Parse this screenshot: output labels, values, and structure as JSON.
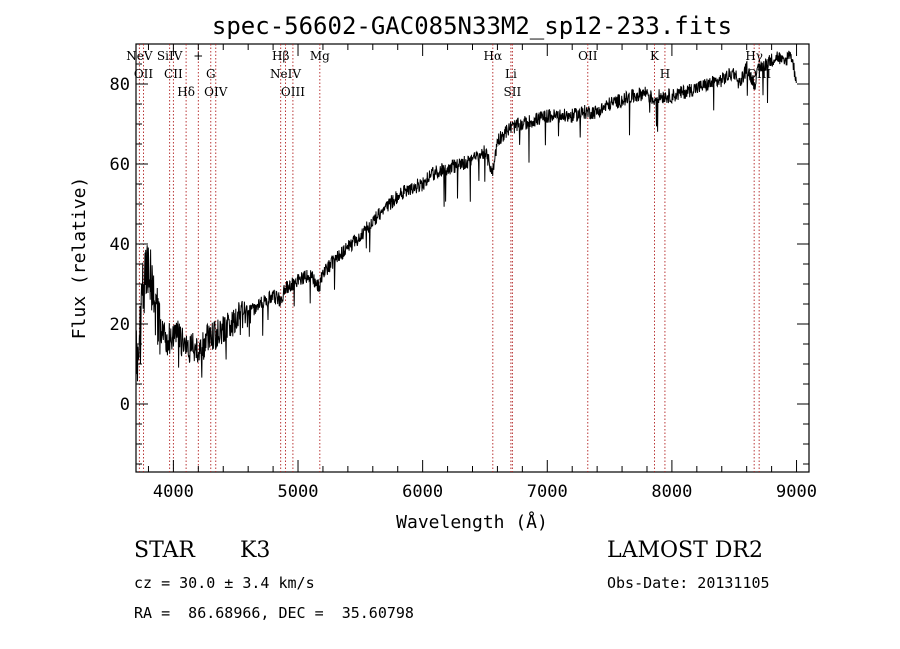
{
  "chart_data": {
    "type": "line",
    "title": "spec-56602-GAC085N33M2_sp12-233.fits",
    "xlabel": "Wavelength (Å)",
    "ylabel": "Flux (relative)",
    "xlim": [
      3700,
      9100
    ],
    "ylim": [
      -17,
      90
    ],
    "x_ticks": [
      4000,
      5000,
      6000,
      7000,
      8000,
      9000
    ],
    "y_ticks": [
      0,
      20,
      40,
      60,
      80
    ],
    "grid": false,
    "series": [
      {
        "x": [
          3700,
          3730,
          3760,
          3800,
          3850,
          3900,
          3950,
          4000,
          4050,
          4100,
          4150,
          4200,
          4250,
          4300,
          4400,
          4500,
          4600,
          4700,
          4800,
          4860,
          4900,
          5000,
          5100,
          5170,
          5200,
          5300,
          5400,
          5500,
          5600,
          5700,
          5800,
          5900,
          6000,
          6100,
          6200,
          6300,
          6400,
          6500,
          6563,
          6600,
          6700,
          6800,
          6900,
          7000,
          7100,
          7200,
          7300,
          7400,
          7500,
          7600,
          7700,
          7800,
          7850,
          7900,
          8000,
          8100,
          8200,
          8300,
          8400,
          8450,
          8500,
          8542,
          8600,
          8662,
          8700,
          8800,
          8850,
          8900,
          8950,
          9000
        ],
        "y": [
          10,
          14,
          30,
          35,
          22,
          18,
          16,
          18,
          17,
          13,
          15,
          14,
          15,
          17,
          19,
          21,
          23,
          25,
          27,
          26,
          29,
          31,
          32,
          29,
          33,
          36,
          39,
          42,
          46,
          49,
          52,
          54,
          55,
          58,
          59,
          60,
          61,
          63,
          58,
          66,
          69,
          70,
          71,
          72,
          72,
          72,
          73,
          73,
          75,
          76,
          77,
          78,
          76,
          77,
          77,
          78,
          79,
          80,
          81,
          82,
          83,
          80,
          84,
          80,
          84,
          86,
          87,
          85,
          88,
          81
        ],
        "noise": true
      }
    ],
    "line_markers": [
      {
        "wave": 3727,
        "label": "NeV"
      },
      {
        "wave": 3760,
        "label": "OII"
      },
      {
        "wave": 3970,
        "label": "SiIV"
      },
      {
        "wave": 4000,
        "label": "CII"
      },
      {
        "wave": 4102,
        "label": "Hδ"
      },
      {
        "wave": 4200,
        "label": "+"
      },
      {
        "wave": 4300,
        "label": "G"
      },
      {
        "wave": 4340,
        "label": "OIV"
      },
      {
        "wave": 4861,
        "label": "Hβ"
      },
      {
        "wave": 4900,
        "label": "NeIV"
      },
      {
        "wave": 4959,
        "label": "OIII"
      },
      {
        "wave": 5175,
        "label": "Mg"
      },
      {
        "wave": 6563,
        "label": "Hα"
      },
      {
        "wave": 6708,
        "label": "Li"
      },
      {
        "wave": 6720,
        "label": "SII"
      },
      {
        "wave": 7325,
        "label": "OII"
      },
      {
        "wave": 7860,
        "label": "K"
      },
      {
        "wave": 7944,
        "label": "H"
      },
      {
        "wave": 8660,
        "label": "Hγ"
      },
      {
        "wave": 8700,
        "label": "OIII"
      }
    ]
  },
  "info": {
    "object_class": "STAR",
    "subclass": "K3",
    "survey": "LAMOST DR2",
    "redshift_line": "cz = 30.0 ± 3.4 km/s",
    "obs_date": "Obs-Date: 20131105",
    "coords": "RA =  86.68966, DEC =  35.60798"
  },
  "colors": {
    "line": "#000000",
    "marker": "#b22222",
    "background": "#ffffff"
  }
}
